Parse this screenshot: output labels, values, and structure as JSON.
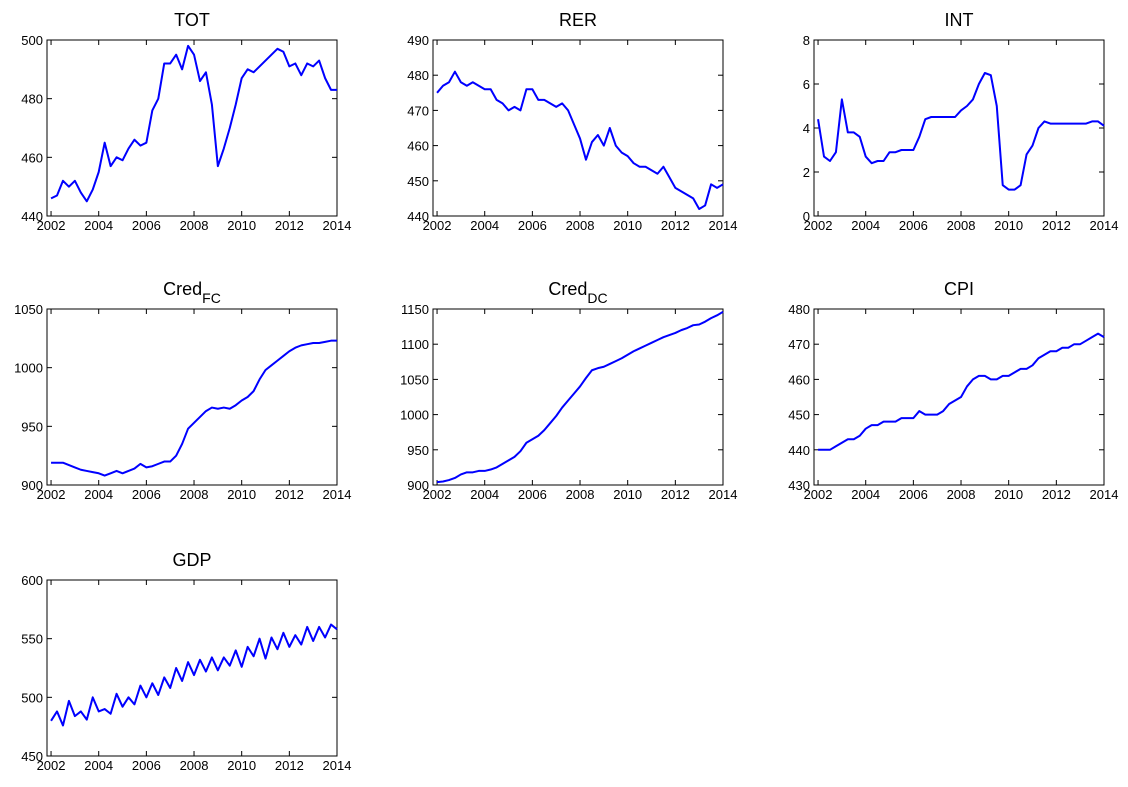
{
  "chart_data": [
    {
      "type": "line",
      "title": "TOT",
      "xlim": [
        2001.83,
        2014
      ],
      "xticks": [
        2002,
        2004,
        2006,
        2008,
        2010,
        2012,
        2014
      ],
      "ylim": [
        440,
        500
      ],
      "yticks": [
        440,
        460,
        480,
        500
      ],
      "x": [
        2002,
        2002.25,
        2002.5,
        2002.75,
        2003,
        2003.25,
        2003.5,
        2003.75,
        2004,
        2004.25,
        2004.5,
        2004.75,
        2005,
        2005.25,
        2005.5,
        2005.75,
        2006,
        2006.25,
        2006.5,
        2006.75,
        2007,
        2007.25,
        2007.5,
        2007.75,
        2008,
        2008.25,
        2008.5,
        2008.75,
        2009,
        2009.25,
        2009.5,
        2009.75,
        2010,
        2010.25,
        2010.5,
        2010.75,
        2011,
        2011.25,
        2011.5,
        2011.75,
        2012,
        2012.25,
        2012.5,
        2012.75,
        2013,
        2013.25,
        2013.5,
        2013.75,
        2014
      ],
      "series": [
        {
          "color": "#0000ff",
          "values": [
            446,
            447,
            452,
            450,
            452,
            448,
            445,
            449,
            455,
            465,
            457,
            460,
            459,
            463,
            466,
            464,
            465,
            476,
            480,
            492,
            492,
            495,
            490,
            498,
            495,
            486,
            489,
            478,
            457,
            463,
            470,
            478,
            487,
            490,
            489,
            491,
            493,
            495,
            497,
            496,
            491,
            492,
            488,
            492,
            491,
            493,
            487,
            483,
            483
          ]
        }
      ]
    },
    {
      "type": "line",
      "title": "RER",
      "xlim": [
        2001.83,
        2014
      ],
      "xticks": [
        2002,
        2004,
        2006,
        2008,
        2010,
        2012,
        2014
      ],
      "ylim": [
        440,
        490
      ],
      "yticks": [
        440,
        450,
        460,
        470,
        480,
        490
      ],
      "x": [
        2002,
        2002.25,
        2002.5,
        2002.75,
        2003,
        2003.25,
        2003.5,
        2003.75,
        2004,
        2004.25,
        2004.5,
        2004.75,
        2005,
        2005.25,
        2005.5,
        2005.75,
        2006,
        2006.25,
        2006.5,
        2006.75,
        2007,
        2007.25,
        2007.5,
        2007.75,
        2008,
        2008.25,
        2008.5,
        2008.75,
        2009,
        2009.25,
        2009.5,
        2009.75,
        2010,
        2010.25,
        2010.5,
        2010.75,
        2011,
        2011.25,
        2011.5,
        2011.75,
        2012,
        2012.25,
        2012.5,
        2012.75,
        2013,
        2013.25,
        2013.5,
        2013.75,
        2014
      ],
      "series": [
        {
          "color": "#0000ff",
          "values": [
            475,
            477,
            478,
            481,
            478,
            477,
            478,
            477,
            476,
            476,
            473,
            472,
            470,
            471,
            470,
            476,
            476,
            473,
            473,
            472,
            471,
            472,
            470,
            466,
            462,
            456,
            461,
            463,
            460,
            465,
            460,
            458,
            457,
            455,
            454,
            454,
            453,
            452,
            454,
            451,
            448,
            447,
            446,
            445,
            442,
            443,
            449,
            448,
            449
          ]
        }
      ]
    },
    {
      "type": "line",
      "title": "INT",
      "xlim": [
        2001.83,
        2014
      ],
      "xticks": [
        2002,
        2004,
        2006,
        2008,
        2010,
        2012,
        2014
      ],
      "ylim": [
        0,
        8
      ],
      "yticks": [
        0,
        2,
        4,
        6,
        8
      ],
      "x": [
        2002,
        2002.25,
        2002.5,
        2002.75,
        2003,
        2003.25,
        2003.5,
        2003.75,
        2004,
        2004.25,
        2004.5,
        2004.75,
        2005,
        2005.25,
        2005.5,
        2005.75,
        2006,
        2006.25,
        2006.5,
        2006.75,
        2007,
        2007.25,
        2007.5,
        2007.75,
        2008,
        2008.25,
        2008.5,
        2008.75,
        2009,
        2009.25,
        2009.5,
        2009.75,
        2010,
        2010.25,
        2010.5,
        2010.75,
        2011,
        2011.25,
        2011.5,
        2011.75,
        2012,
        2012.25,
        2012.5,
        2012.75,
        2013,
        2013.25,
        2013.5,
        2013.75,
        2014
      ],
      "series": [
        {
          "color": "#0000ff",
          "values": [
            4.4,
            2.7,
            2.5,
            2.9,
            5.3,
            3.8,
            3.8,
            3.6,
            2.7,
            2.4,
            2.5,
            2.5,
            2.9,
            2.9,
            3.0,
            3.0,
            3.0,
            3.6,
            4.4,
            4.5,
            4.5,
            4.5,
            4.5,
            4.5,
            4.8,
            5.0,
            5.3,
            6.0,
            6.5,
            6.4,
            5.0,
            1.4,
            1.2,
            1.2,
            1.4,
            2.8,
            3.2,
            4.0,
            4.3,
            4.2,
            4.2,
            4.2,
            4.2,
            4.2,
            4.2,
            4.2,
            4.3,
            4.3,
            4.1
          ]
        }
      ]
    },
    {
      "type": "line",
      "title": "Cred",
      "title_subscript": "FC",
      "xlim": [
        2001.83,
        2014
      ],
      "xticks": [
        2002,
        2004,
        2006,
        2008,
        2010,
        2012,
        2014
      ],
      "ylim": [
        900,
        1050
      ],
      "yticks": [
        900,
        950,
        1000,
        1050
      ],
      "x": [
        2002,
        2002.25,
        2002.5,
        2002.75,
        2003,
        2003.25,
        2003.5,
        2003.75,
        2004,
        2004.25,
        2004.5,
        2004.75,
        2005,
        2005.25,
        2005.5,
        2005.75,
        2006,
        2006.25,
        2006.5,
        2006.75,
        2007,
        2007.25,
        2007.5,
        2007.75,
        2008,
        2008.25,
        2008.5,
        2008.75,
        2009,
        2009.25,
        2009.5,
        2009.75,
        2010,
        2010.25,
        2010.5,
        2010.75,
        2011,
        2011.25,
        2011.5,
        2011.75,
        2012,
        2012.25,
        2012.5,
        2012.75,
        2013,
        2013.25,
        2013.5,
        2013.75,
        2014
      ],
      "series": [
        {
          "color": "#0000ff",
          "values": [
            919,
            919,
            919,
            917,
            915,
            913,
            912,
            911,
            910,
            908,
            910,
            912,
            910,
            912,
            914,
            918,
            915,
            916,
            918,
            920,
            920,
            925,
            935,
            948,
            953,
            958,
            963,
            966,
            965,
            966,
            965,
            968,
            972,
            975,
            980,
            990,
            998,
            1002,
            1006,
            1010,
            1014,
            1017,
            1019,
            1020,
            1021,
            1021,
            1022,
            1023,
            1023
          ]
        }
      ]
    },
    {
      "type": "line",
      "title": "Cred",
      "title_subscript": "DC",
      "xlim": [
        2001.83,
        2014
      ],
      "xticks": [
        2002,
        2004,
        2006,
        2008,
        2010,
        2012,
        2014
      ],
      "ylim": [
        900,
        1150
      ],
      "yticks": [
        900,
        950,
        1000,
        1050,
        1100,
        1150
      ],
      "x": [
        2002,
        2002.25,
        2002.5,
        2002.75,
        2003,
        2003.25,
        2003.5,
        2003.75,
        2004,
        2004.25,
        2004.5,
        2004.75,
        2005,
        2005.25,
        2005.5,
        2005.75,
        2006,
        2006.25,
        2006.5,
        2006.75,
        2007,
        2007.25,
        2007.5,
        2007.75,
        2008,
        2008.25,
        2008.5,
        2008.75,
        2009,
        2009.25,
        2009.5,
        2009.75,
        2010,
        2010.25,
        2010.5,
        2010.75,
        2011,
        2011.25,
        2011.5,
        2011.75,
        2012,
        2012.25,
        2012.5,
        2012.75,
        2013,
        2013.25,
        2013.5,
        2013.75,
        2014
      ],
      "series": [
        {
          "color": "#0000ff",
          "values": [
            904,
            905,
            907,
            910,
            915,
            918,
            918,
            920,
            920,
            922,
            925,
            930,
            935,
            940,
            948,
            960,
            965,
            970,
            978,
            988,
            998,
            1010,
            1020,
            1030,
            1040,
            1052,
            1063,
            1066,
            1068,
            1072,
            1076,
            1080,
            1085,
            1090,
            1094,
            1098,
            1102,
            1106,
            1110,
            1113,
            1116,
            1120,
            1123,
            1127,
            1128,
            1132,
            1137,
            1141,
            1146
          ]
        }
      ]
    },
    {
      "type": "line",
      "title": "CPI",
      "xlim": [
        2001.83,
        2014
      ],
      "xticks": [
        2002,
        2004,
        2006,
        2008,
        2010,
        2012,
        2014
      ],
      "ylim": [
        430,
        480
      ],
      "yticks": [
        430,
        440,
        450,
        460,
        470,
        480
      ],
      "x": [
        2002,
        2002.25,
        2002.5,
        2002.75,
        2003,
        2003.25,
        2003.5,
        2003.75,
        2004,
        2004.25,
        2004.5,
        2004.75,
        2005,
        2005.25,
        2005.5,
        2005.75,
        2006,
        2006.25,
        2006.5,
        2006.75,
        2007,
        2007.25,
        2007.5,
        2007.75,
        2008,
        2008.25,
        2008.5,
        2008.75,
        2009,
        2009.25,
        2009.5,
        2009.75,
        2010,
        2010.25,
        2010.5,
        2010.75,
        2011,
        2011.25,
        2011.5,
        2011.75,
        2012,
        2012.25,
        2012.5,
        2012.75,
        2013,
        2013.25,
        2013.5,
        2013.75,
        2014
      ],
      "series": [
        {
          "color": "#0000ff",
          "values": [
            440,
            440,
            440,
            441,
            442,
            443,
            443,
            444,
            446,
            447,
            447,
            448,
            448,
            448,
            449,
            449,
            449,
            451,
            450,
            450,
            450,
            451,
            453,
            454,
            455,
            458,
            460,
            461,
            461,
            460,
            460,
            461,
            461,
            462,
            463,
            463,
            464,
            466,
            467,
            468,
            468,
            469,
            469,
            470,
            470,
            471,
            472,
            473,
            472
          ]
        }
      ]
    },
    {
      "type": "line",
      "title": "GDP",
      "xlim": [
        2001.83,
        2014
      ],
      "xticks": [
        2002,
        2004,
        2006,
        2008,
        2010,
        2012,
        2014
      ],
      "ylim": [
        450,
        600
      ],
      "yticks": [
        450,
        500,
        550,
        600
      ],
      "x": [
        2002,
        2002.25,
        2002.5,
        2002.75,
        2003,
        2003.25,
        2003.5,
        2003.75,
        2004,
        2004.25,
        2004.5,
        2004.75,
        2005,
        2005.25,
        2005.5,
        2005.75,
        2006,
        2006.25,
        2006.5,
        2006.75,
        2007,
        2007.25,
        2007.5,
        2007.75,
        2008,
        2008.25,
        2008.5,
        2008.75,
        2009,
        2009.25,
        2009.5,
        2009.75,
        2010,
        2010.25,
        2010.5,
        2010.75,
        2011,
        2011.25,
        2011.5,
        2011.75,
        2012,
        2012.25,
        2012.5,
        2012.75,
        2013,
        2013.25,
        2013.5,
        2013.75,
        2014
      ],
      "series": [
        {
          "color": "#0000ff",
          "values": [
            480,
            488,
            476,
            497,
            484,
            488,
            481,
            500,
            488,
            490,
            486,
            503,
            492,
            500,
            494,
            510,
            500,
            512,
            502,
            517,
            508,
            525,
            514,
            530,
            519,
            532,
            522,
            534,
            523,
            534,
            527,
            540,
            526,
            543,
            535,
            550,
            533,
            551,
            541,
            555,
            543,
            553,
            545,
            560,
            548,
            560,
            551,
            562,
            558
          ]
        }
      ]
    }
  ]
}
